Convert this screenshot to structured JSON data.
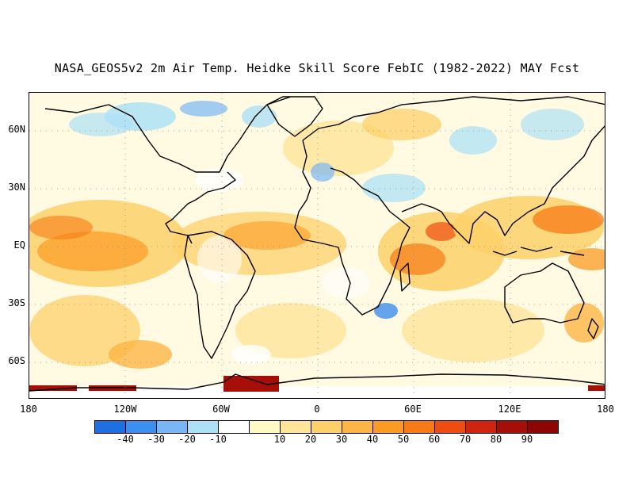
{
  "title": "NASA_GEOS5v2 2m Air Temp. Heidke Skill Score FebIC (1982-2022) MAY Fcst",
  "y_axis_labels": [
    "60N",
    "30N",
    "EQ",
    "30S",
    "60S"
  ],
  "x_axis_labels": [
    "180",
    "120W",
    "60W",
    "0",
    "60E",
    "120E",
    "180"
  ],
  "colorbar": {
    "labels": [
      "-40",
      "-30",
      "-20",
      "-10",
      "10",
      "20",
      "30",
      "40",
      "50",
      "60",
      "70",
      "80",
      "90"
    ],
    "colors": [
      "#1f6fe0",
      "#3e8ef0",
      "#79b6f5",
      "#aee1f6",
      "#ffffff",
      "#fffac4",
      "#fee59a",
      "#fdd06a",
      "#fdb545",
      "#fb9b23",
      "#f77a16",
      "#ee4c10",
      "#cf2410",
      "#a60f08",
      "#8c0606"
    ]
  },
  "map": {
    "projection": "latitude-longitude",
    "lon_range": [
      -180,
      180
    ],
    "lat_range": [
      -78,
      78
    ],
    "gridlines": "dotted",
    "variable": "2m Air Temp. Heidke Skill Score"
  }
}
